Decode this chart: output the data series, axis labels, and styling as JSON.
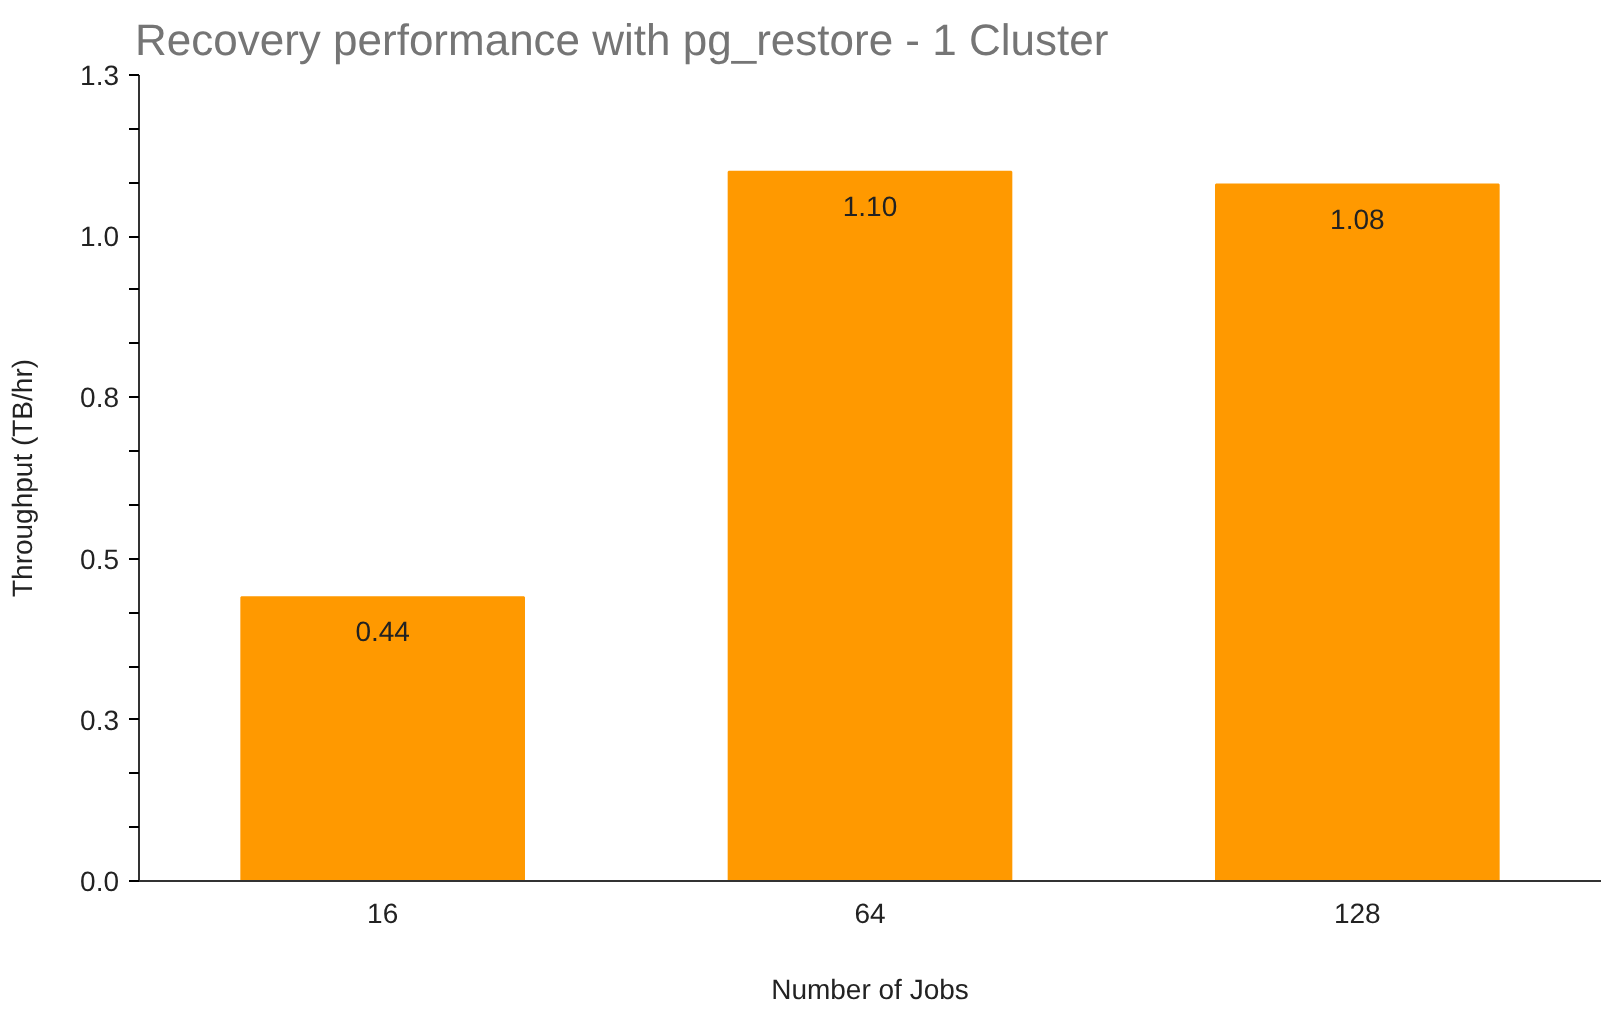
{
  "chart_data": {
    "type": "bar",
    "title": "Recovery performance with pg_restore - 1 Cluster",
    "xlabel": "Number of Jobs",
    "ylabel": "Throughput (TB/hr)",
    "categories": [
      "16",
      "64",
      "128"
    ],
    "values": [
      0.44,
      1.1,
      1.08
    ],
    "color": "#ff9900",
    "value_labels": [
      "0.44",
      "1.10",
      "1.08"
    ],
    "ylim": [
      0,
      1.25
    ],
    "yticks": [
      {
        "value": 0,
        "label": "0.0"
      },
      {
        "value": 0.083,
        "label": null
      },
      {
        "value": 0.167,
        "label": null
      },
      {
        "value": 0.25,
        "label": "0.3"
      },
      {
        "value": 0.333,
        "label": null
      },
      {
        "value": 0.417,
        "label": null
      },
      {
        "value": 0.5,
        "label": "0.5"
      },
      {
        "value": 0.583,
        "label": null
      },
      {
        "value": 0.667,
        "label": null
      },
      {
        "value": 0.75,
        "label": "0.8"
      },
      {
        "value": 0.833,
        "label": null
      },
      {
        "value": 0.917,
        "label": null
      },
      {
        "value": 1.0,
        "label": "1.0"
      },
      {
        "value": 1.083,
        "label": null
      },
      {
        "value": 1.167,
        "label": null
      },
      {
        "value": 1.25,
        "label": "1.3"
      }
    ],
    "grid": false
  }
}
